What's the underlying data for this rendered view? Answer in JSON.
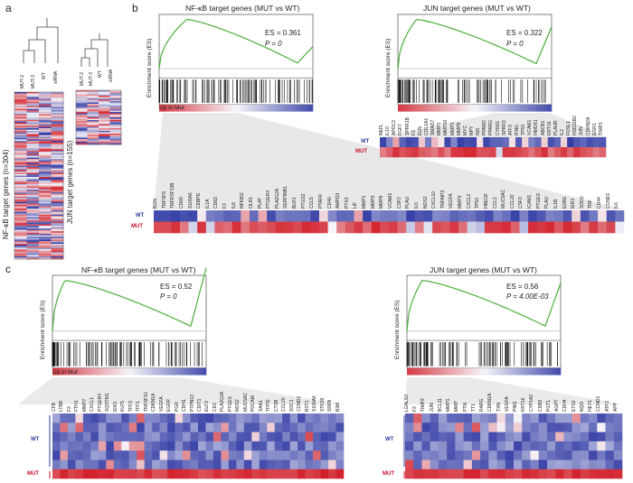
{
  "figure": {
    "panels": {
      "a": "a",
      "b": "b",
      "c": "c"
    },
    "panel_a": {
      "heatmap1": {
        "ylabel": "NF-κB target genes (n=304)",
        "columns": [
          "MUT-2",
          "MUT-3",
          "WT",
          "siRNA"
        ]
      },
      "heatmap2": {
        "ylabel": "JUN target genes (n=155)",
        "columns": [
          "MUT-2",
          "MUT-3",
          "WT",
          "siRNA"
        ]
      }
    },
    "ylabel_es": "Enrichment score (ES)",
    "up_label": "Up in Mut",
    "row_wt": "WT",
    "row_mut": "MUT",
    "b_nfkb": {
      "title": "NF-κB target genes (MUT vs WT)",
      "es": "ES = 0.361",
      "p": "P = 0",
      "genes": [
        "BGN",
        "TNFSF9",
        "TNFRSF13B",
        "CD69",
        "S100A6",
        "CEBPD",
        "IL1A",
        "CD83",
        "F3",
        "IL8",
        "NFKBIZ",
        "OLR1",
        "PLAT",
        "PTGER4",
        "PLA2G2A",
        "SERPINB1",
        "BLR1",
        "PTGS2",
        "CCL5",
        "PTAFR",
        "CD40",
        "AMPD3",
        "PTX3",
        "LIF",
        "MMP1",
        "MMP3",
        "MMP9",
        "VCAM1",
        "CSF2",
        "PLAU",
        "IL6",
        "NOS2",
        "CXCL10",
        "TNFAIP3",
        "VEGFA",
        "MMP3",
        "CXCL2",
        "TP53",
        "HBEGF",
        "CCL2",
        "MUC5AC",
        "CCL20",
        "CSF3",
        "ICAM1",
        "PTGES",
        "PLAU",
        "IL1B",
        "EDN1",
        "IER3",
        "SOD2",
        "TNF",
        "CD44",
        "CCND1",
        "IL6"
      ]
    },
    "b_jun": {
      "title": "JUN target genes (MUT vs WT)",
      "es": "ES = 0.322",
      "p": "P = 0",
      "genes": [
        "NEFL",
        "IL10",
        "APOC3",
        "FGF7",
        "SPRR1B",
        "F3",
        "ELN",
        "COL1A1",
        "SMAD7",
        "MMP1",
        "MMP10",
        "MMP3",
        "MMP9",
        "MYC",
        "NPY",
        "INS",
        "PPARD",
        "PPARG",
        "CYR61",
        "SPRR3",
        "ATF3",
        "IFNG",
        "TP53",
        "VCAM1",
        "HMOX1",
        "ABCB1",
        "KRT16",
        "PLAUR",
        "IL2",
        "FOSL1",
        "HSD11B2",
        "JUN",
        "CDKN2A",
        "EGR1",
        "TIMP1"
      ]
    },
    "c_nfkb": {
      "title": "NF-κB target genes (MUT vs WT)",
      "es": "ES = 0.52",
      "p": "P = 0",
      "genes": [
        "CFB",
        "LTBR",
        "F3",
        "FTH1",
        "MMP7",
        "CXCL1",
        "PTGER4",
        "SQSTM1",
        "IER3",
        "KLF5",
        "TFF3",
        "TFF1",
        "TNFSF10",
        "CDKN1A",
        "VEGFA",
        "EGFR",
        "PGR",
        "CDH1",
        "PTPN13",
        "CDIT1",
        "ELF3",
        "CD2",
        "PLA2G2A",
        "PTGES",
        "NOS2",
        "MUC5AC",
        "PDCAM",
        "SAA1",
        "TFPI2",
        "CTSB",
        "CCL20",
        "SOC1",
        "CCND1",
        "BST1",
        "S100A6",
        "STK39",
        "SRR8",
        "B2M"
      ]
    },
    "c_jun": {
      "title": "JUN target genes (MUT vs WT)",
      "es": "ES = 0.56",
      "p": "P = 4.00E-03",
      "genes": [
        "LGALS3",
        "F3",
        "TIMP2",
        "JUN",
        "BCL11",
        "MMP1",
        "MMP",
        "PTN",
        "TT1",
        "RARG",
        "CDKN1A",
        "TXN",
        "VEGFA",
        "PIM1",
        "KRT16",
        "CYP1A2",
        "CDB2",
        "PGT1",
        "AGPT",
        "CDH4",
        "ETS2",
        "NQO",
        "HEY1",
        "CCND1",
        "ATF3",
        "APP"
      ]
    }
  }
}
